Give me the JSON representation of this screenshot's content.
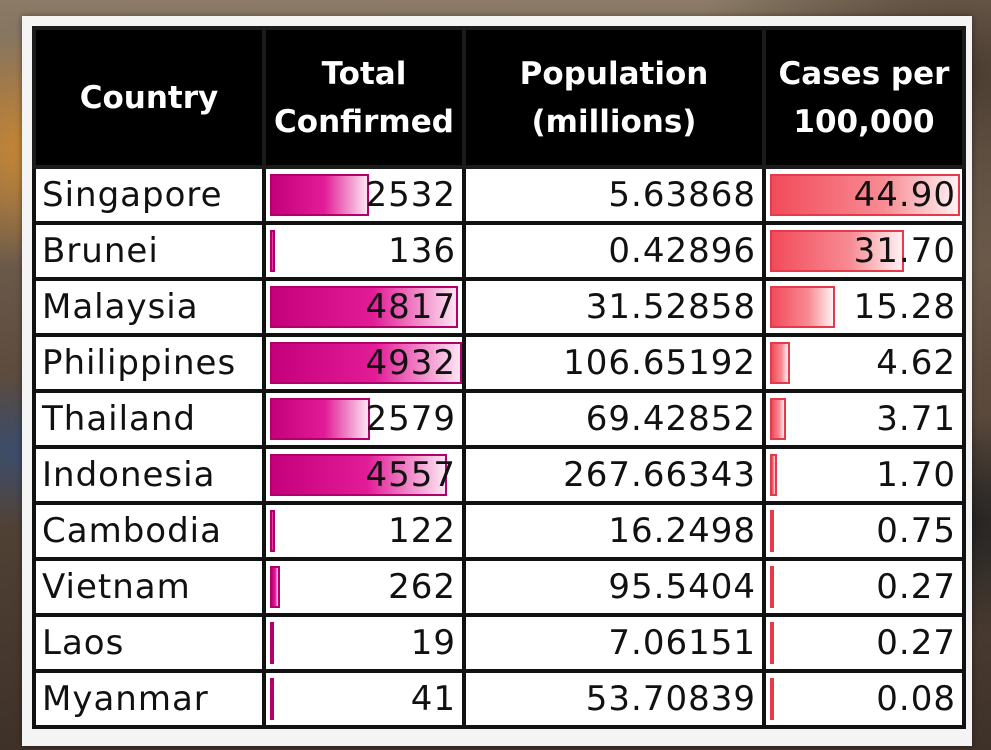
{
  "chart_data": {
    "type": "table",
    "columns": [
      "Country",
      "Total Confirmed",
      "Population (millions)",
      "Cases per 100,000"
    ],
    "header_lines": [
      [
        "Country"
      ],
      [
        "Total",
        "Confirmed"
      ],
      [
        "Population",
        "(millions)"
      ],
      [
        "Cases per",
        "100,000"
      ]
    ],
    "rows": [
      {
        "country": "Singapore",
        "confirmed": "2532",
        "population": "5.63868",
        "rate": "44.90"
      },
      {
        "country": "Brunei",
        "confirmed": "136",
        "population": "0.42896",
        "rate": "31.70"
      },
      {
        "country": "Malaysia",
        "confirmed": "4817",
        "population": "31.52858",
        "rate": "15.28"
      },
      {
        "country": "Philippines",
        "confirmed": "4932",
        "population": "106.65192",
        "rate": "4.62"
      },
      {
        "country": "Thailand",
        "confirmed": "2579",
        "population": "69.42852",
        "rate": "3.71"
      },
      {
        "country": "Indonesia",
        "confirmed": "4557",
        "population": "267.66343",
        "rate": "1.70"
      },
      {
        "country": "Cambodia",
        "confirmed": "122",
        "population": "16.2498",
        "rate": "0.75"
      },
      {
        "country": "Vietnam",
        "confirmed": "262",
        "population": "95.5404",
        "rate": "0.27"
      },
      {
        "country": "Laos",
        "confirmed": "19",
        "population": "7.06151",
        "rate": "0.27"
      },
      {
        "country": "Myanmar",
        "confirmed": "41",
        "population": "53.70839",
        "rate": "0.08"
      }
    ],
    "data_bars": {
      "confirmed_max": 4932,
      "rate_max": 44.9,
      "confirmed_color": "#d1007f",
      "rate_color": "#f0505e"
    }
  }
}
